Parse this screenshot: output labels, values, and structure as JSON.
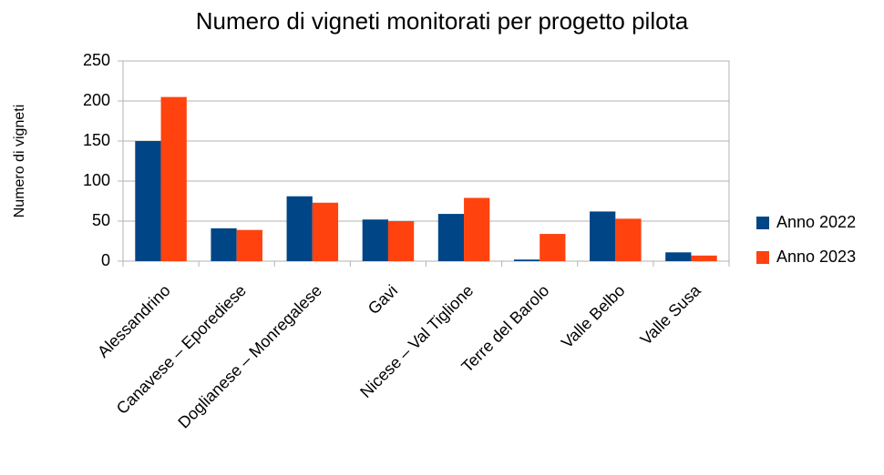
{
  "chart_data": {
    "type": "bar",
    "title": "Numero di vigneti monitorati per progetto pilota",
    "y_label": "Numero di vigneti",
    "categories": [
      "Alessandrino",
      "Canavese – Eporediese",
      "Doglianese – Monregalese",
      "Gavi",
      "Nicese – Val Tiglione",
      "Terre del Barolo",
      "Valle Belbo",
      "Valle Susa"
    ],
    "series": [
      {
        "name": "Anno 2022",
        "color": "#004586",
        "values": [
          150,
          41,
          81,
          52,
          59,
          2,
          62,
          11
        ]
      },
      {
        "name": "Anno 2023",
        "color": "#ff420e",
        "values": [
          205,
          39,
          73,
          50,
          79,
          34,
          53,
          7
        ]
      }
    ],
    "ylim": [
      0,
      250
    ],
    "yticks": [
      0,
      50,
      100,
      150,
      200,
      250
    ],
    "grid": true,
    "legend": "right"
  }
}
